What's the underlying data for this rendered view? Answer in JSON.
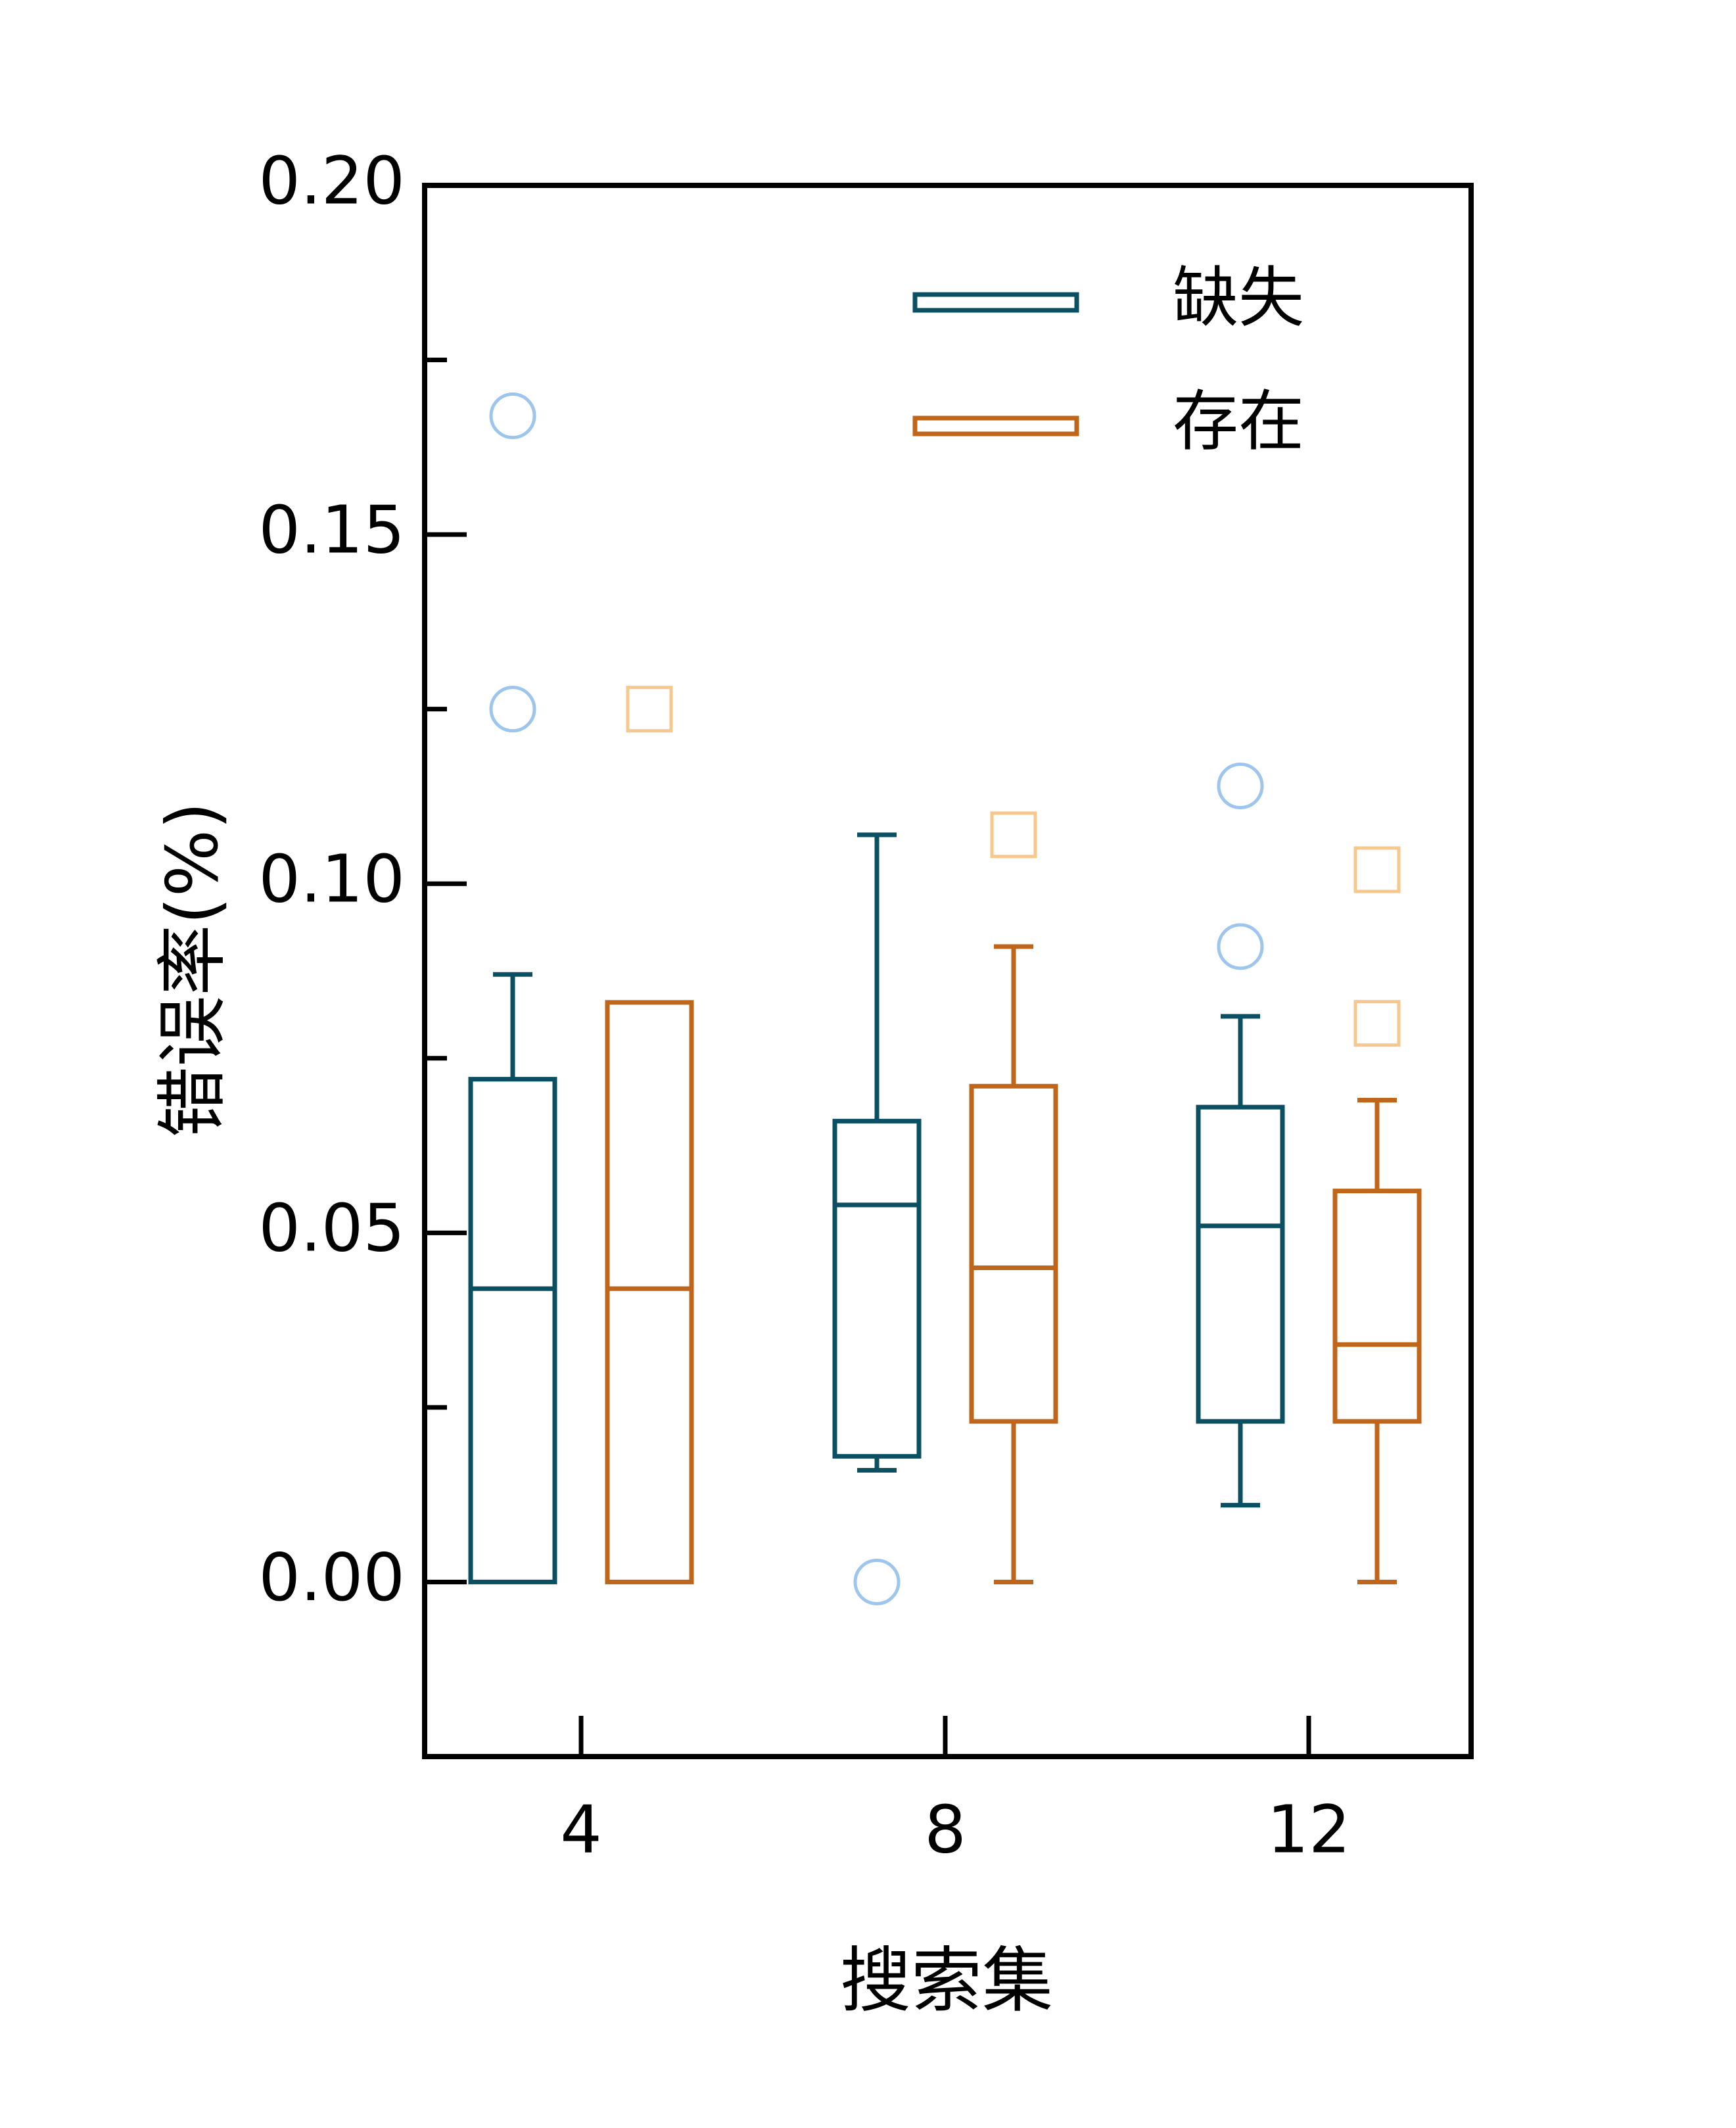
{
  "chart_data": {
    "type": "box",
    "title": "",
    "xlabel": "搜索集",
    "ylabel": "错误率(%)",
    "ylim": [
      -0.025,
      0.2
    ],
    "yticks": [
      0.0,
      0.05,
      0.1,
      0.15,
      0.2
    ],
    "ytick_labels": [
      "0.00",
      "0.05",
      "0.10",
      "0.15",
      "0.20"
    ],
    "yminor_ticks": [
      -0.025,
      0.025,
      0.075,
      0.125,
      0.175
    ],
    "categories": [
      "4",
      "8",
      "12"
    ],
    "grid": false,
    "legend_position": "top-right",
    "series": [
      {
        "name": "缺失",
        "color": "#0b4f63",
        "outlier_color": "#9ec5ee",
        "outlier_marker": "circle",
        "boxes": [
          {
            "category": "4",
            "whisker_low": 0.0,
            "q1": 0.0,
            "median": 0.042,
            "q3": 0.072,
            "whisker_high": 0.087,
            "outliers": [
              0.167,
              0.125
            ]
          },
          {
            "category": "8",
            "whisker_low": 0.016,
            "q1": 0.018,
            "median": 0.054,
            "q3": 0.066,
            "whisker_high": 0.107,
            "outliers": [
              0.0
            ]
          },
          {
            "category": "12",
            "whisker_low": 0.011,
            "q1": 0.023,
            "median": 0.051,
            "q3": 0.068,
            "whisker_high": 0.081,
            "outliers": [
              0.114,
              0.091
            ]
          }
        ]
      },
      {
        "name": "存在",
        "color": "#c0661a",
        "outlier_color": "#f7c88e",
        "outlier_marker": "square",
        "boxes": [
          {
            "category": "4",
            "whisker_low": 0.0,
            "q1": 0.0,
            "median": 0.042,
            "q3": 0.083,
            "whisker_high": 0.083,
            "outliers": [
              0.125
            ]
          },
          {
            "category": "8",
            "whisker_low": 0.0,
            "q1": 0.023,
            "median": 0.045,
            "q3": 0.071,
            "whisker_high": 0.091,
            "outliers": [
              0.107
            ]
          },
          {
            "category": "12",
            "whisker_low": 0.0,
            "q1": 0.023,
            "median": 0.034,
            "q3": 0.056,
            "whisker_high": 0.069,
            "outliers": [
              0.102,
              0.08
            ]
          }
        ]
      }
    ]
  }
}
